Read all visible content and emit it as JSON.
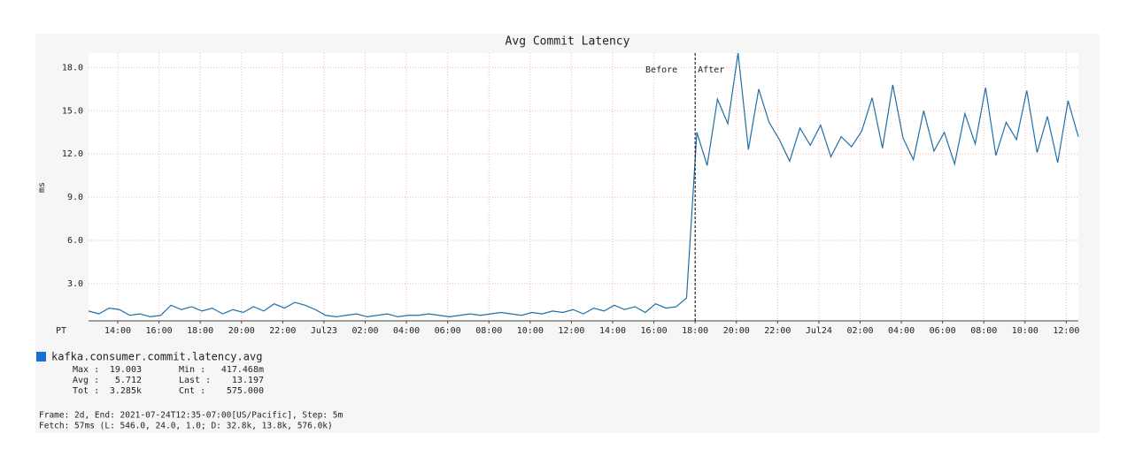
{
  "chart_data": {
    "type": "line",
    "title": "Avg Commit Latency",
    "y_label": "ms",
    "x_label": "PT",
    "x": [
      "2021-07-22T12:35",
      "2021-07-22T13:05",
      "2021-07-22T13:35",
      "2021-07-22T14:05",
      "2021-07-22T14:35",
      "2021-07-22T15:05",
      "2021-07-22T15:35",
      "2021-07-22T16:05",
      "2021-07-22T16:35",
      "2021-07-22T17:05",
      "2021-07-22T17:35",
      "2021-07-22T18:05",
      "2021-07-22T18:35",
      "2021-07-22T19:05",
      "2021-07-22T19:35",
      "2021-07-22T20:05",
      "2021-07-22T20:35",
      "2021-07-22T21:05",
      "2021-07-22T21:35",
      "2021-07-22T22:05",
      "2021-07-22T22:35",
      "2021-07-22T23:05",
      "2021-07-22T23:35",
      "2021-07-23T00:05",
      "2021-07-23T00:35",
      "2021-07-23T01:05",
      "2021-07-23T01:35",
      "2021-07-23T02:05",
      "2021-07-23T02:35",
      "2021-07-23T03:05",
      "2021-07-23T03:35",
      "2021-07-23T04:05",
      "2021-07-23T04:35",
      "2021-07-23T05:05",
      "2021-07-23T05:35",
      "2021-07-23T06:05",
      "2021-07-23T06:35",
      "2021-07-23T07:05",
      "2021-07-23T07:35",
      "2021-07-23T08:05",
      "2021-07-23T08:35",
      "2021-07-23T09:05",
      "2021-07-23T09:35",
      "2021-07-23T10:05",
      "2021-07-23T10:35",
      "2021-07-23T11:05",
      "2021-07-23T11:35",
      "2021-07-23T12:05",
      "2021-07-23T12:35",
      "2021-07-23T13:05",
      "2021-07-23T13:35",
      "2021-07-23T14:05",
      "2021-07-23T14:35",
      "2021-07-23T15:05",
      "2021-07-23T15:35",
      "2021-07-23T16:05",
      "2021-07-23T16:35",
      "2021-07-23T17:05",
      "2021-07-23T17:35",
      "2021-07-23T18:05",
      "2021-07-23T18:35",
      "2021-07-23T19:05",
      "2021-07-23T19:35",
      "2021-07-23T20:05",
      "2021-07-23T20:35",
      "2021-07-23T21:05",
      "2021-07-23T21:35",
      "2021-07-23T22:05",
      "2021-07-23T22:35",
      "2021-07-23T23:05",
      "2021-07-23T23:35",
      "2021-07-24T00:05",
      "2021-07-24T00:35",
      "2021-07-24T01:05",
      "2021-07-24T01:35",
      "2021-07-24T02:05",
      "2021-07-24T02:35",
      "2021-07-24T03:05",
      "2021-07-24T03:35",
      "2021-07-24T04:05",
      "2021-07-24T04:35",
      "2021-07-24T05:05",
      "2021-07-24T05:35",
      "2021-07-24T06:05",
      "2021-07-24T06:35",
      "2021-07-24T07:05",
      "2021-07-24T07:35",
      "2021-07-24T08:05",
      "2021-07-24T08:35",
      "2021-07-24T09:05",
      "2021-07-24T09:35",
      "2021-07-24T10:05",
      "2021-07-24T10:35",
      "2021-07-24T11:05",
      "2021-07-24T11:35",
      "2021-07-24T12:05",
      "2021-07-24T12:35"
    ],
    "series": [
      {
        "name": "kafka.consumer.commit.latency.avg",
        "color": "#1f6fa8",
        "legend_color": "#1670d8",
        "values": [
          1.1,
          0.9,
          1.3,
          1.2,
          0.8,
          0.9,
          0.7,
          0.8,
          1.5,
          1.2,
          1.4,
          1.1,
          1.3,
          0.9,
          1.2,
          1.0,
          1.4,
          1.1,
          1.6,
          1.3,
          1.7,
          1.5,
          1.2,
          0.8,
          0.7,
          0.8,
          0.9,
          0.7,
          0.8,
          0.9,
          0.7,
          0.8,
          0.8,
          0.9,
          0.8,
          0.7,
          0.8,
          0.9,
          0.8,
          0.9,
          1.0,
          0.9,
          0.8,
          1.0,
          0.9,
          1.1,
          1.0,
          1.2,
          0.9,
          1.3,
          1.1,
          1.5,
          1.2,
          1.4,
          1.0,
          1.6,
          1.3,
          1.4,
          2.0,
          13.5,
          11.2,
          15.8,
          14.1,
          19.0,
          12.3,
          16.5,
          14.2,
          13.0,
          11.5,
          13.8,
          12.6,
          14.0,
          11.8,
          13.2,
          12.5,
          13.6,
          15.9,
          12.4,
          16.8,
          13.1,
          11.6,
          15.0,
          12.2,
          13.5,
          11.3,
          14.8,
          12.7,
          16.6,
          11.9,
          14.2,
          13.0,
          16.4,
          12.1,
          14.6,
          11.4,
          15.7,
          13.2
        ]
      }
    ],
    "xlim": [
      "2021-07-22T12:35",
      "2021-07-24T12:35"
    ],
    "xticks": [
      {
        "value": "2021-07-22T14:00",
        "label": "14:00"
      },
      {
        "value": "2021-07-22T16:00",
        "label": "16:00"
      },
      {
        "value": "2021-07-22T18:00",
        "label": "18:00"
      },
      {
        "value": "2021-07-22T20:00",
        "label": "20:00"
      },
      {
        "value": "2021-07-22T22:00",
        "label": "22:00"
      },
      {
        "value": "2021-07-23T00:00",
        "label": "Jul23"
      },
      {
        "value": "2021-07-23T02:00",
        "label": "02:00"
      },
      {
        "value": "2021-07-23T04:00",
        "label": "04:00"
      },
      {
        "value": "2021-07-23T06:00",
        "label": "06:00"
      },
      {
        "value": "2021-07-23T08:00",
        "label": "08:00"
      },
      {
        "value": "2021-07-23T10:00",
        "label": "10:00"
      },
      {
        "value": "2021-07-23T12:00",
        "label": "12:00"
      },
      {
        "value": "2021-07-23T14:00",
        "label": "14:00"
      },
      {
        "value": "2021-07-23T16:00",
        "label": "16:00"
      },
      {
        "value": "2021-07-23T18:00",
        "label": "18:00"
      },
      {
        "value": "2021-07-23T20:00",
        "label": "20:00"
      },
      {
        "value": "2021-07-23T22:00",
        "label": "22:00"
      },
      {
        "value": "2021-07-24T00:00",
        "label": "Jul24"
      },
      {
        "value": "2021-07-24T02:00",
        "label": "02:00"
      },
      {
        "value": "2021-07-24T04:00",
        "label": "04:00"
      },
      {
        "value": "2021-07-24T06:00",
        "label": "06:00"
      },
      {
        "value": "2021-07-24T08:00",
        "label": "08:00"
      },
      {
        "value": "2021-07-24T10:00",
        "label": "10:00"
      },
      {
        "value": "2021-07-24T12:00",
        "label": "12:00"
      }
    ],
    "ylim": [
      0.417468,
      19.003
    ],
    "yticks": [
      {
        "value": 3,
        "label": "3.0"
      },
      {
        "value": 6,
        "label": "6.0"
      },
      {
        "value": 9,
        "label": "9.0"
      },
      {
        "value": 12,
        "label": "12.0"
      },
      {
        "value": 15,
        "label": "15.0"
      },
      {
        "value": 18,
        "label": "18.0"
      }
    ],
    "grid": true,
    "annotations": [
      {
        "x": "2021-07-23T18:00",
        "before": "Before",
        "after": "After"
      }
    ],
    "stats": [
      [
        "Max :",
        "19.003",
        "Min  :",
        "417.468m"
      ],
      [
        "Avg :",
        "5.712",
        "Last :",
        "13.197"
      ],
      [
        "Tot :",
        "3.285k",
        "Cnt  :",
        "575.000"
      ]
    ],
    "footer": [
      "Frame: 2d, End: 2021-07-24T12:35-07:00[US/Pacific], Step: 5m",
      "Fetch: 57ms (L: 546.0, 24.0, 1.0; D: 32.8k, 13.8k, 576.0k)"
    ]
  }
}
